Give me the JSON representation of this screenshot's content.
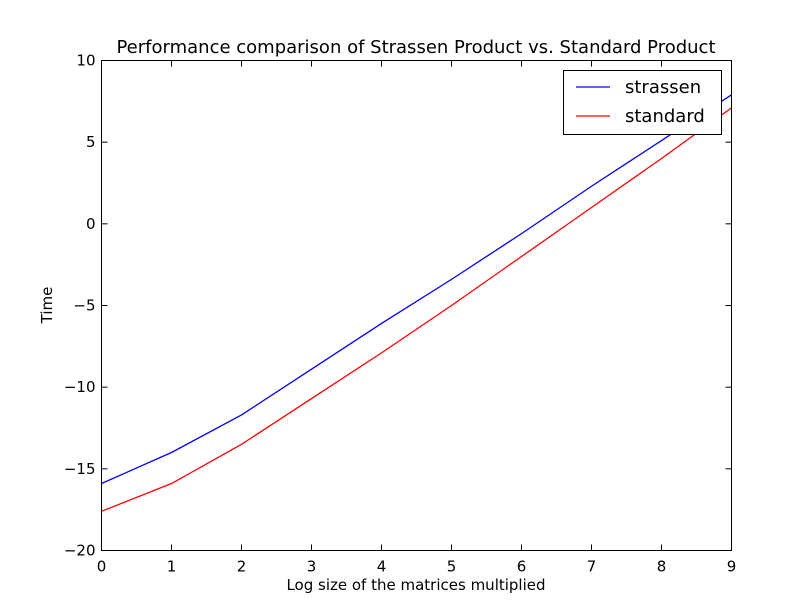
{
  "chart_data": {
    "type": "line",
    "title": "Performance comparison of Strassen Product vs. Standard Product",
    "xlabel": "Log size of the matrices multiplied",
    "ylabel": "Time",
    "xlim": [
      0,
      9
    ],
    "ylim": [
      -20,
      10
    ],
    "xticks": [
      0,
      1,
      2,
      3,
      4,
      5,
      6,
      7,
      8,
      9
    ],
    "yticks": [
      -20,
      -15,
      -10,
      -5,
      0,
      5,
      10
    ],
    "grid": false,
    "legend_position": "top-right",
    "x": [
      0,
      1,
      2,
      3,
      4,
      5,
      6,
      7,
      8,
      9
    ],
    "series": [
      {
        "name": "strassen",
        "color": "#0000ff",
        "values": [
          -15.9,
          -14.0,
          -11.7,
          -8.9,
          -6.1,
          -3.4,
          -0.6,
          2.3,
          5.1,
          7.9
        ]
      },
      {
        "name": "standard",
        "color": "#ff0000",
        "values": [
          -17.6,
          -15.9,
          -13.5,
          -10.7,
          -7.9,
          -5.0,
          -2.0,
          1.0,
          4.0,
          7.1
        ]
      }
    ]
  }
}
